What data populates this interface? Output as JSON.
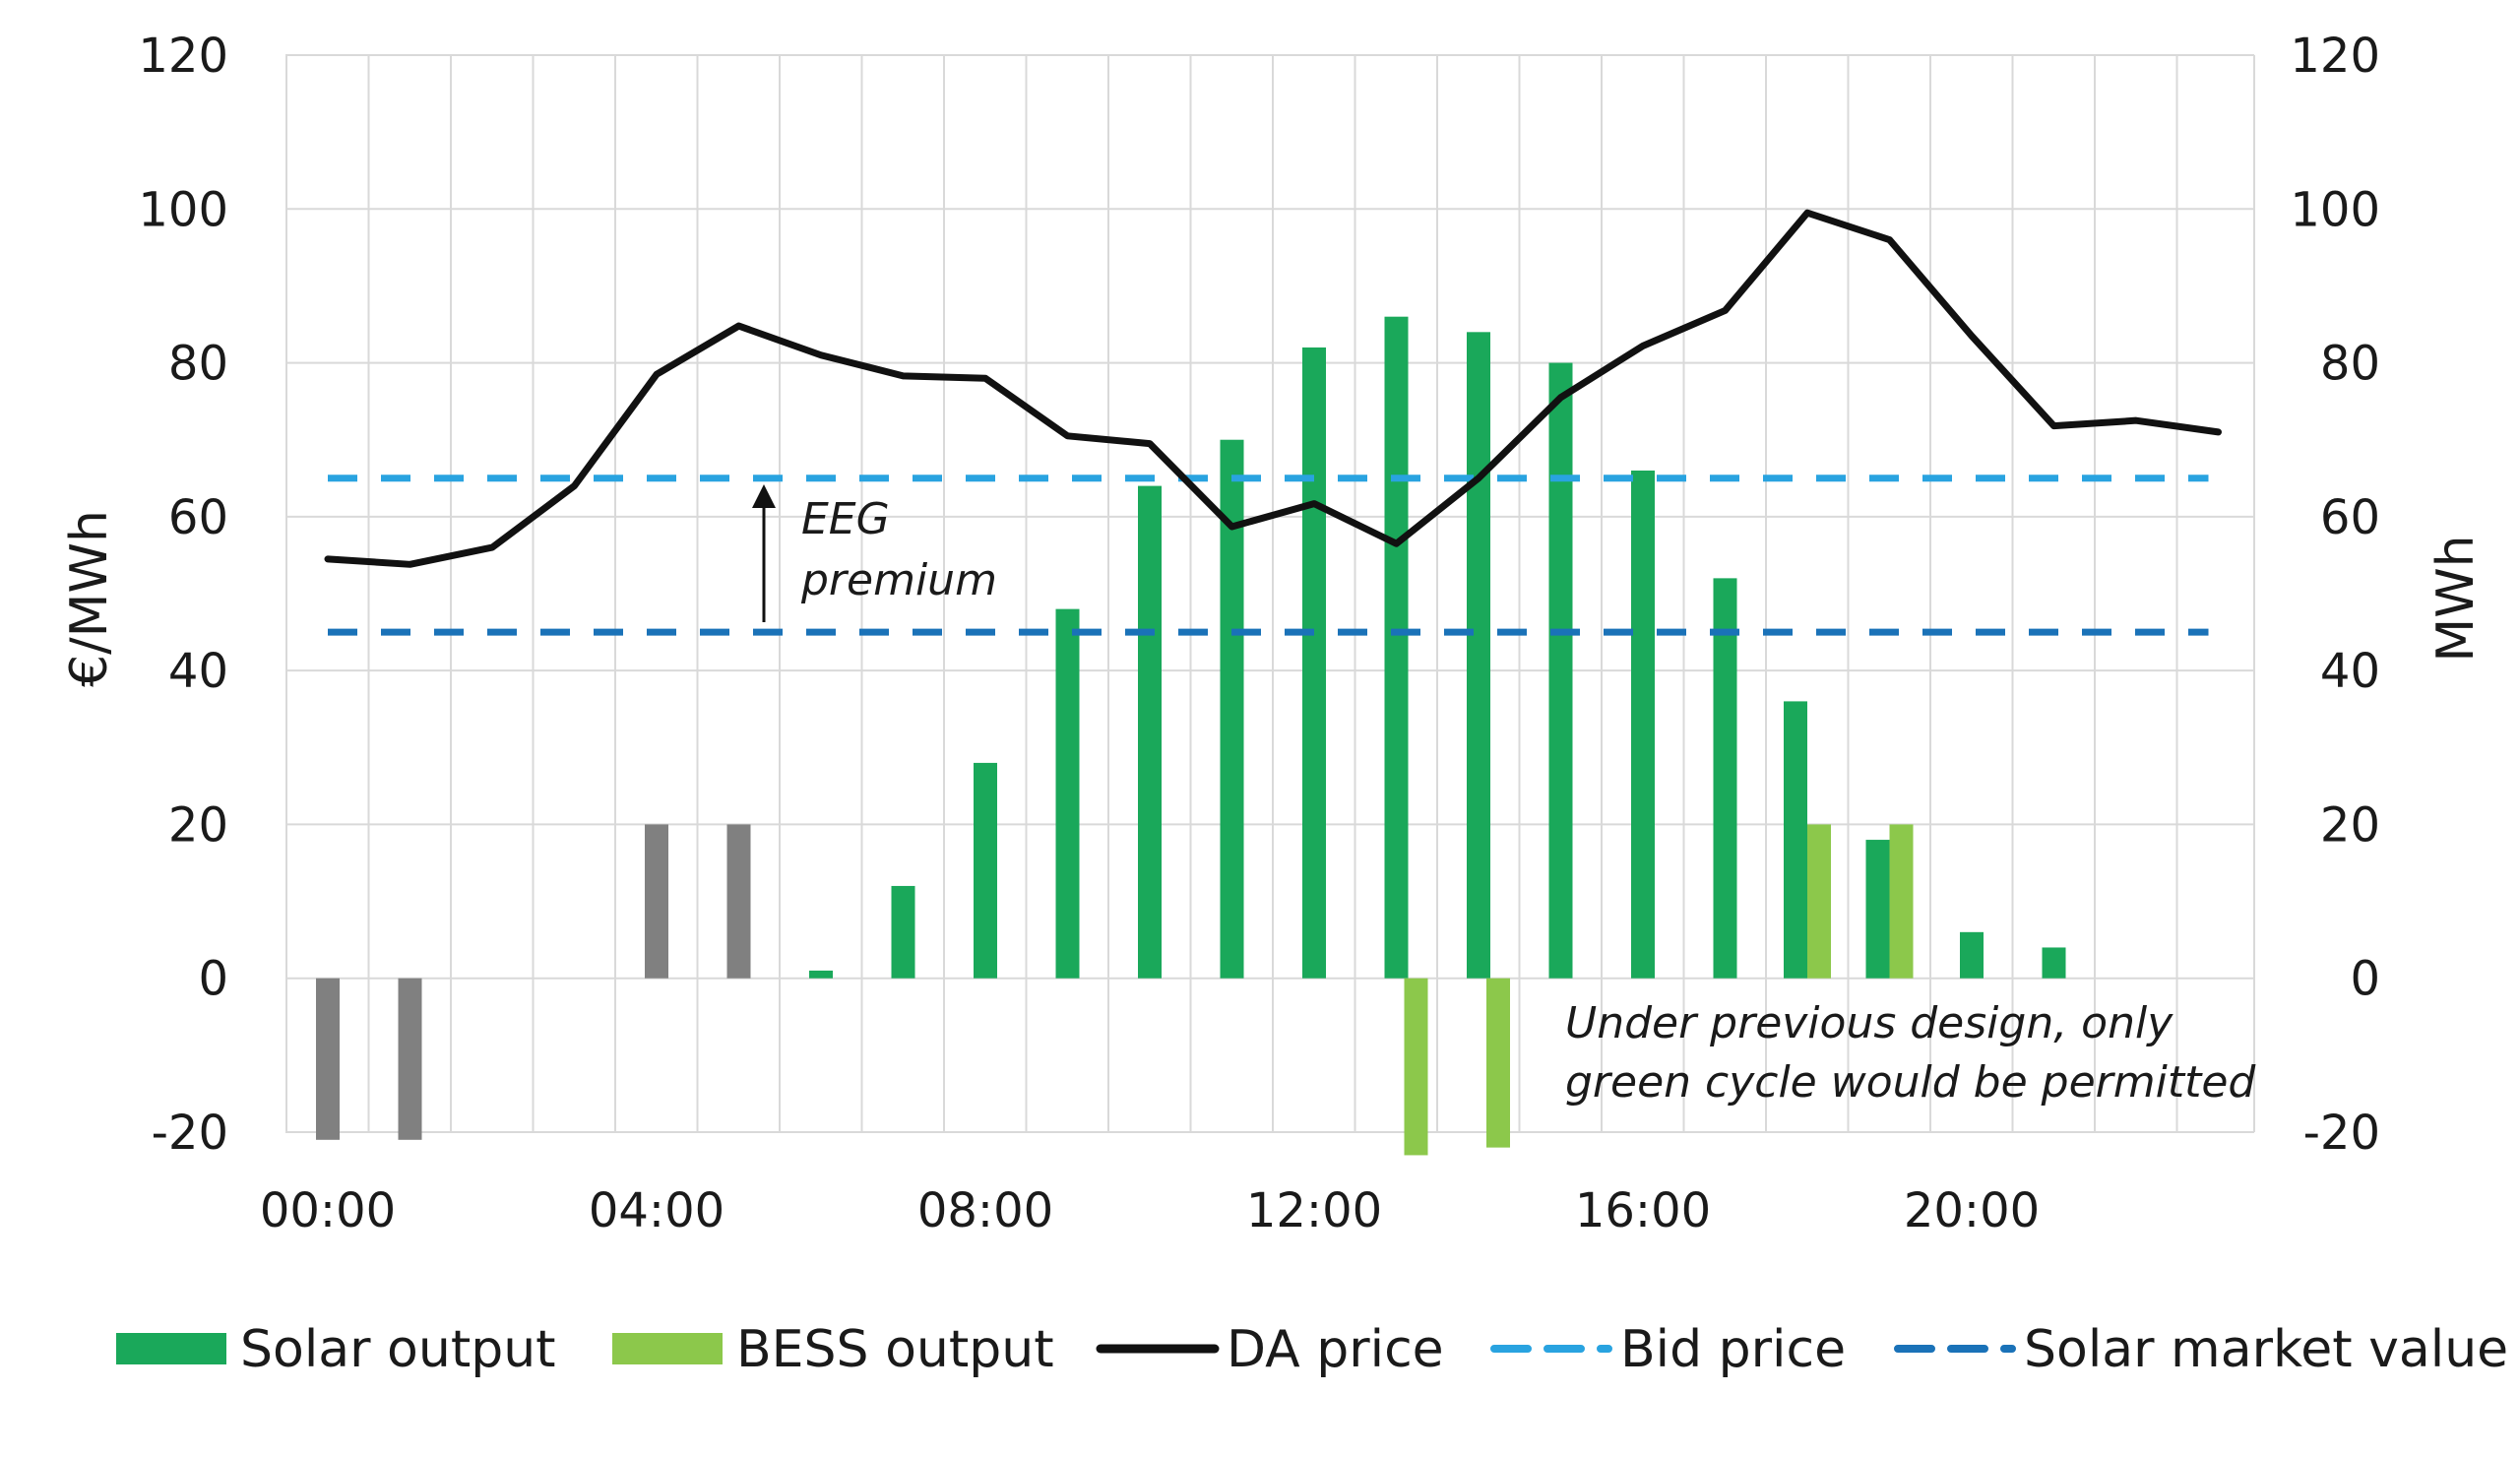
{
  "chart_data": {
    "type": "bar",
    "ylabel_left": "€/MWh",
    "ylabel_right": "MWh",
    "ylim": [
      -20,
      120
    ],
    "y_ticks": [
      "120",
      "100",
      "80",
      "60",
      "40",
      "20",
      "0",
      "-20"
    ],
    "x_ticks": [
      "00:00",
      "04:00",
      "08:00",
      "12:00",
      "16:00",
      "20:00"
    ],
    "hours": [
      0,
      1,
      2,
      3,
      4,
      5,
      6,
      7,
      8,
      9,
      10,
      11,
      12,
      13,
      14,
      15,
      16,
      17,
      18,
      19,
      20,
      21,
      22,
      23
    ],
    "series": [
      {
        "name": "Solar output",
        "type": "bar",
        "color": "#1aa85a",
        "values": [
          0,
          0,
          0,
          0,
          0,
          0,
          1,
          12,
          28,
          48,
          64,
          70,
          82,
          86,
          84,
          80,
          66,
          52,
          36,
          18,
          6,
          4,
          0,
          0
        ]
      },
      {
        "name": "BESS output",
        "type": "bar",
        "color": "#8cc84b",
        "values": [
          0,
          0,
          0,
          0,
          0,
          0,
          0,
          0,
          0,
          0,
          0,
          0,
          0,
          -23,
          -22,
          0,
          0,
          0,
          20,
          20,
          0,
          0,
          0,
          0
        ]
      },
      {
        "name": "",
        "type": "bar",
        "color": "#808080",
        "values": [
          -21,
          -21,
          0,
          0,
          20,
          20,
          0,
          0,
          0,
          0,
          0,
          0,
          0,
          0,
          0,
          0,
          0,
          0,
          0,
          0,
          0,
          0,
          0,
          0
        ]
      },
      {
        "name": "DA price",
        "type": "line",
        "color": "#111111",
        "values": [
          54.5,
          53.8,
          56,
          64,
          78.5,
          84.8,
          81,
          78.3,
          78,
          70.5,
          69.5,
          58.7,
          61.7,
          56.5,
          65,
          75.5,
          82.2,
          86.8,
          99.5,
          96,
          83.5,
          71.8,
          72.5,
          71
        ]
      },
      {
        "name": "Bid price",
        "type": "dashed-line",
        "color": "#29a3e0",
        "value": 65
      },
      {
        "name": "Solar market value",
        "type": "dashed-line",
        "color": "#1a72b8",
        "value": 45
      }
    ],
    "annotations": {
      "premium_line1": "EEG",
      "premium_line2": "premium",
      "note_line1": "Under previous design, only",
      "note_line2": "green cycle would be permitted"
    },
    "grid": true,
    "legend_position": "bottom"
  }
}
